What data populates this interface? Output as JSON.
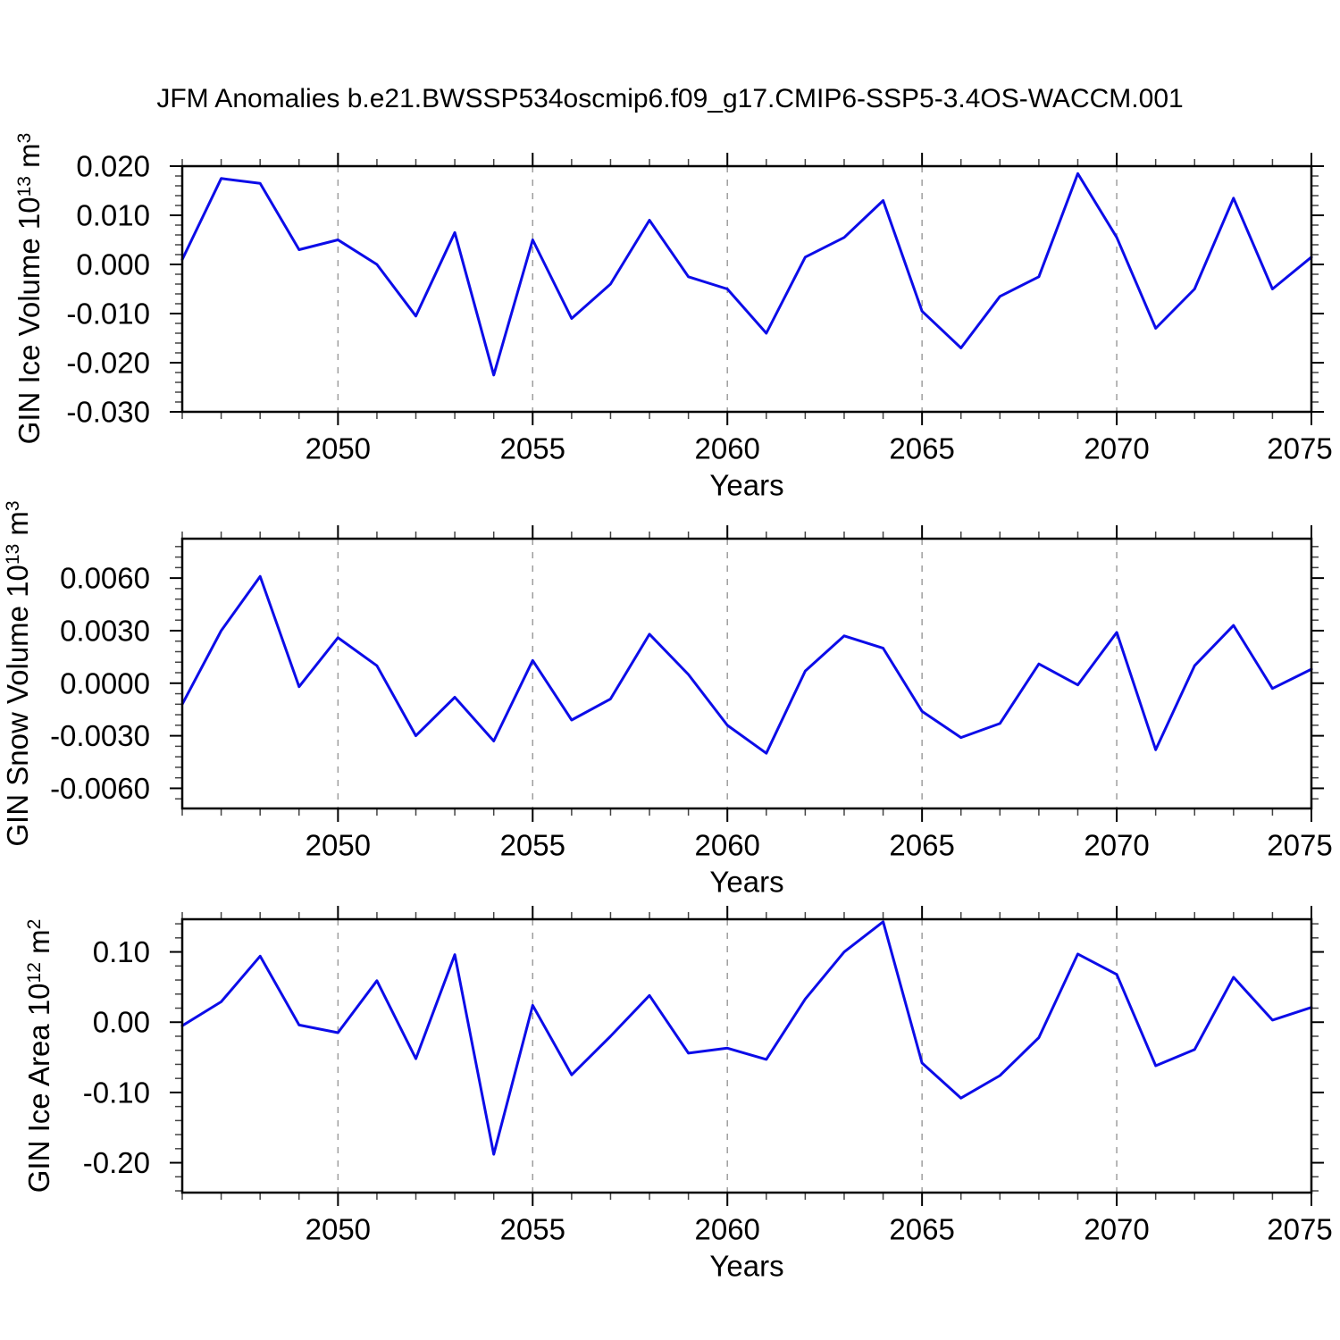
{
  "title": "JFM Anomalies b.e21.BWSSP534oscmip6.f09_g17.CMIP6-SSP5-3.4OS-WACCM.001",
  "figure": {
    "background": "#ffffff",
    "line_color": "#0c0ce8",
    "grid_color": "#9e9e9e",
    "frame_color": "#000000",
    "minor_tick_color": "#444444"
  },
  "chart_data": [
    {
      "type": "line",
      "ylabel": "GIN Ice Volume 10^13 m^3",
      "ylabel_parts": {
        "pre": "GIN Ice Volume 10",
        "sup1": "13",
        "mid": " m",
        "sup2": "3"
      },
      "xlabel": "Years",
      "xlim": [
        2046,
        2075
      ],
      "ylim": [
        -0.03,
        0.02
      ],
      "yticks": [
        {
          "v": 0.02,
          "label": "0.020"
        },
        {
          "v": 0.01,
          "label": "0.010"
        },
        {
          "v": 0.0,
          "label": "0.000"
        },
        {
          "v": -0.01,
          "label": "-0.010"
        },
        {
          "v": -0.02,
          "label": "-0.020"
        },
        {
          "v": -0.03,
          "label": "-0.030"
        }
      ],
      "y_minor_step": 0.002,
      "x_major_ticks": [
        2050,
        2055,
        2060,
        2065,
        2070,
        2075
      ],
      "x_tick_labels": [
        "2050",
        "2055",
        "2060",
        "2065",
        "2070",
        "2075"
      ],
      "grid_years": [
        2050,
        2055,
        2060,
        2065,
        2070
      ],
      "x": [
        2046,
        2047,
        2048,
        2049,
        2050,
        2051,
        2052,
        2053,
        2054,
        2055,
        2056,
        2057,
        2058,
        2059,
        2060,
        2061,
        2062,
        2063,
        2064,
        2065,
        2066,
        2067,
        2068,
        2069,
        2070,
        2071,
        2072,
        2073,
        2074,
        2075
      ],
      "values": [
        0.001,
        0.0175,
        0.0165,
        0.003,
        0.005,
        0.0,
        -0.0105,
        0.0065,
        -0.0225,
        0.005,
        -0.011,
        -0.004,
        0.009,
        -0.0025,
        -0.005,
        -0.014,
        0.0015,
        0.0055,
        0.013,
        -0.0095,
        -0.017,
        -0.0065,
        -0.0025,
        0.0185,
        0.0055,
        -0.013,
        -0.005,
        0.0135,
        -0.005,
        0.0015
      ]
    },
    {
      "type": "line",
      "ylabel": "GIN Snow Volume 10^13 m^3",
      "ylabel_parts": {
        "pre": "GIN Snow Volume 10",
        "sup1": "13",
        "mid": " m",
        "sup2": "3"
      },
      "xlabel": "Years",
      "xlim": [
        2046,
        2075
      ],
      "ylim": [
        -0.00715,
        0.00825
      ],
      "yticks": [
        {
          "v": 0.006,
          "label": "0.0060"
        },
        {
          "v": 0.003,
          "label": "0.0030"
        },
        {
          "v": 0.0,
          "label": "0.0000"
        },
        {
          "v": -0.003,
          "label": "-0.0030"
        },
        {
          "v": -0.006,
          "label": "-0.0060"
        }
      ],
      "y_minor_step": 0.0006,
      "x_major_ticks": [
        2050,
        2055,
        2060,
        2065,
        2070,
        2075
      ],
      "x_tick_labels": [
        "2050",
        "2055",
        "2060",
        "2065",
        "2070",
        "2075"
      ],
      "grid_years": [
        2050,
        2055,
        2060,
        2065,
        2070
      ],
      "x": [
        2046,
        2047,
        2048,
        2049,
        2050,
        2051,
        2052,
        2053,
        2054,
        2055,
        2056,
        2057,
        2058,
        2059,
        2060,
        2061,
        2062,
        2063,
        2064,
        2065,
        2066,
        2067,
        2068,
        2069,
        2070,
        2071,
        2072,
        2073,
        2074,
        2075
      ],
      "values": [
        -0.0012,
        0.003,
        0.0061,
        -0.0002,
        0.0026,
        0.001,
        -0.003,
        -0.0008,
        -0.0033,
        0.0013,
        -0.0021,
        -0.0009,
        0.0028,
        0.0005,
        -0.0024,
        -0.004,
        0.0007,
        0.0027,
        0.002,
        -0.0016,
        -0.0031,
        -0.0023,
        0.0011,
        -0.0001,
        0.0029,
        -0.0038,
        0.001,
        0.0033,
        -0.0003,
        0.0008
      ]
    },
    {
      "type": "line",
      "ylabel": "GIN Ice Area 10^12 m^2",
      "ylabel_parts": {
        "pre": "GIN Ice Area 10",
        "sup1": "12",
        "mid": " m",
        "sup2": "2"
      },
      "xlabel": "Years",
      "xlim": [
        2046,
        2075
      ],
      "ylim": [
        -0.2425,
        0.1465
      ],
      "yticks": [
        {
          "v": 0.1,
          "label": "0.10"
        },
        {
          "v": 0.0,
          "label": "0.00"
        },
        {
          "v": -0.1,
          "label": "-0.10"
        },
        {
          "v": -0.2,
          "label": "-0.20"
        }
      ],
      "y_minor_step": 0.02,
      "x_major_ticks": [
        2050,
        2055,
        2060,
        2065,
        2070,
        2075
      ],
      "x_tick_labels": [
        "2050",
        "2055",
        "2060",
        "2065",
        "2070",
        "2075"
      ],
      "grid_years": [
        2050,
        2055,
        2060,
        2065,
        2070
      ],
      "x": [
        2046,
        2047,
        2048,
        2049,
        2050,
        2051,
        2052,
        2053,
        2054,
        2055,
        2056,
        2057,
        2058,
        2059,
        2060,
        2061,
        2062,
        2063,
        2064,
        2065,
        2066,
        2067,
        2068,
        2069,
        2070,
        2071,
        2072,
        2073,
        2074,
        2075
      ],
      "values": [
        -0.005,
        0.029,
        0.094,
        -0.004,
        -0.015,
        0.059,
        -0.052,
        0.096,
        -0.188,
        0.024,
        -0.075,
        -0.02,
        0.038,
        -0.044,
        -0.037,
        -0.053,
        0.033,
        0.1,
        0.143,
        -0.058,
        -0.108,
        -0.076,
        -0.022,
        0.097,
        0.068,
        -0.062,
        -0.039,
        0.064,
        0.003,
        0.021
      ]
    }
  ]
}
